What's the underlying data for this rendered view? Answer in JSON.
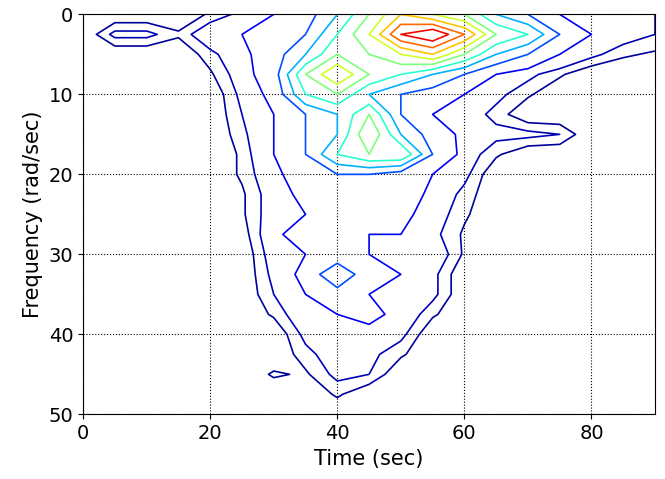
{
  "chart_data": {
    "type": "contour",
    "xlabel": "Time (sec)",
    "ylabel": "Frequency (rad/sec)",
    "x": [
      0,
      5,
      10,
      15,
      20,
      25,
      30,
      35,
      40,
      45,
      50,
      55,
      60,
      65,
      70,
      75,
      80,
      85,
      90
    ],
    "y": [
      0,
      2.5,
      5,
      7.5,
      10,
      12.5,
      15,
      17.5,
      20,
      22.5,
      25,
      27.5,
      30,
      32.5,
      35,
      37.5,
      40,
      42.5,
      45,
      47.5,
      50
    ],
    "cells": [
      [
        0,
        0,
        0,
        0,
        0.3,
        0.6,
        1,
        1.5,
        3,
        5,
        7,
        6,
        5,
        3,
        2,
        1,
        0.8,
        0.6,
        0.5
      ],
      [
        0,
        0.6,
        0.6,
        0.3,
        0.8,
        1,
        1.5,
        2,
        4,
        6,
        9,
        10,
        8,
        5,
        4,
        2,
        1,
        0.7,
        0.5
      ],
      [
        0,
        0,
        0,
        0,
        0.4,
        0.8,
        1.5,
        3,
        5,
        5,
        6,
        7,
        5,
        3,
        2,
        1,
        0.6,
        0.3,
        0.2
      ],
      [
        0,
        0,
        0,
        0,
        0.2,
        0.7,
        1.5,
        5,
        7,
        5,
        4,
        3,
        2,
        1,
        0.6,
        0.3,
        0,
        0,
        0
      ],
      [
        0,
        0,
        0,
        0,
        0,
        0.6,
        1.2,
        4,
        5,
        3,
        2,
        1.5,
        1,
        0.6,
        0.3,
        0,
        0,
        0,
        0
      ],
      [
        0,
        0,
        0,
        0,
        0,
        0.5,
        1,
        2,
        3,
        5,
        2,
        1,
        0.7,
        0.4,
        0,
        0,
        0,
        0,
        0
      ],
      [
        0,
        0,
        0,
        0,
        0,
        0.4,
        1,
        2,
        3,
        6,
        3,
        1.5,
        0.8,
        0.6,
        0.6,
        0.5,
        0,
        0,
        0
      ],
      [
        0,
        0,
        0,
        0,
        0,
        0.3,
        1,
        2,
        4,
        5,
        5,
        2,
        0.7,
        0.3,
        0,
        0,
        0,
        0,
        0
      ],
      [
        0,
        0,
        0,
        0,
        0,
        0.3,
        0.8,
        1.5,
        2,
        2,
        1.5,
        1,
        0.6,
        0,
        0,
        0,
        0,
        0,
        0
      ],
      [
        0,
        0,
        0,
        0,
        0,
        0.2,
        0.7,
        1.2,
        1.5,
        2,
        1.5,
        0.8,
        0.4,
        0,
        0,
        0,
        0,
        0,
        0
      ],
      [
        0,
        0,
        0,
        0,
        0,
        0.2,
        0.7,
        1,
        1.5,
        1.5,
        1.2,
        0.7,
        0.3,
        0,
        0,
        0,
        0,
        0,
        0
      ],
      [
        0,
        0,
        0,
        0,
        0,
        0.1,
        0.8,
        1.5,
        1.2,
        1,
        1,
        0.6,
        0.2,
        0,
        0,
        0,
        0,
        0,
        0
      ],
      [
        0,
        0,
        0,
        0,
        0,
        0,
        0.7,
        1,
        1.2,
        1,
        1,
        0.8,
        0.2,
        0,
        0,
        0,
        0,
        0,
        0
      ],
      [
        0,
        0,
        0,
        0,
        0,
        0,
        0.6,
        1.2,
        3,
        1.2,
        1,
        0.6,
        0,
        0,
        0,
        0,
        0,
        0,
        0
      ],
      [
        0,
        0,
        0,
        0,
        0,
        0,
        0.5,
        1,
        1.5,
        1,
        0.8,
        0.6,
        0,
        0,
        0,
        0,
        0,
        0,
        0
      ],
      [
        0,
        0,
        0,
        0,
        0,
        0,
        0.3,
        0.8,
        1,
        1.2,
        0.8,
        0.3,
        0,
        0,
        0,
        0,
        0,
        0,
        0
      ],
      [
        0,
        0,
        0,
        0,
        0,
        0,
        0,
        0.6,
        0.8,
        0.8,
        0.6,
        0,
        0,
        0,
        0,
        0,
        0,
        0,
        0
      ],
      [
        0,
        0,
        0,
        0,
        0,
        0,
        0,
        0.4,
        0.7,
        0.6,
        0.3,
        0,
        0,
        0,
        0,
        0,
        0,
        0,
        0
      ],
      [
        0,
        0,
        0,
        0,
        0,
        0,
        0.3,
        0.2,
        0.6,
        0.5,
        0,
        0,
        0,
        0,
        0,
        0,
        0,
        0,
        0
      ],
      [
        0,
        0,
        0,
        0,
        0,
        0,
        0,
        0,
        0.3,
        0,
        0,
        0,
        0,
        0,
        0,
        0,
        0,
        0,
        0
      ],
      [
        0,
        0,
        0,
        0,
        0,
        0,
        0,
        0,
        0,
        0,
        0,
        0,
        0,
        0,
        0,
        0,
        0,
        0,
        0
      ]
    ],
    "levels": [
      0.25,
      0.5,
      1,
      2,
      3,
      4,
      5,
      6,
      7,
      8,
      9
    ],
    "zlim": [
      0,
      10
    ],
    "xlim": [
      0,
      90
    ],
    "ylim": [
      50,
      0
    ],
    "xticks": [
      0,
      20,
      40,
      60,
      80
    ],
    "yticks": [
      0,
      10,
      20,
      30,
      40,
      50
    ],
    "grid": true
  }
}
